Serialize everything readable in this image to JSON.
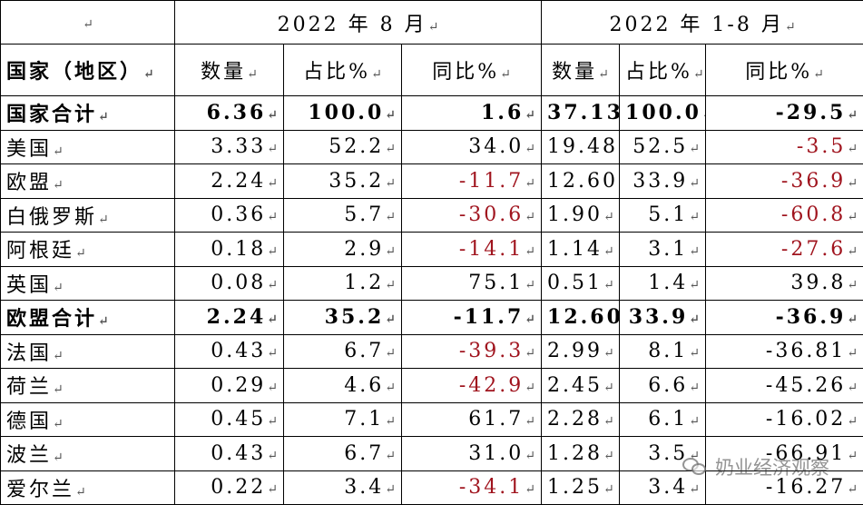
{
  "header": {
    "corner": "",
    "period1": "2022 年 8 月",
    "period2": "2022 年 1-8 月",
    "country_col": "国家（地区）",
    "qty": "数量",
    "share": "占比%",
    "yoy": "同比%"
  },
  "return_mark": "↵",
  "colors": {
    "negative": "#a0141e",
    "text": "#000000"
  },
  "rows": [
    {
      "name": "国家合计",
      "bold": true,
      "m_qty": "6.36",
      "m_share": "100.0",
      "m_yoy": "1.6",
      "m_yoy_red": false,
      "y_qty": "37.13",
      "y_share": "100.0",
      "y_yoy": "-29.5",
      "y_yoy_red": false
    },
    {
      "name": "美国",
      "bold": false,
      "m_qty": "3.33",
      "m_share": "52.2",
      "m_yoy": "34.0",
      "m_yoy_red": false,
      "y_qty": "19.48",
      "y_share": "52.5",
      "y_yoy": "-3.5",
      "y_yoy_red": true
    },
    {
      "name": "欧盟",
      "bold": false,
      "m_qty": "2.24",
      "m_share": "35.2",
      "m_yoy": "-11.7",
      "m_yoy_red": true,
      "y_qty": "12.60",
      "y_share": "33.9",
      "y_yoy": "-36.9",
      "y_yoy_red": true
    },
    {
      "name": "白俄罗斯",
      "bold": false,
      "m_qty": "0.36",
      "m_share": "5.7",
      "m_yoy": "-30.6",
      "m_yoy_red": true,
      "y_qty": "1.90",
      "y_share": "5.1",
      "y_yoy": "-60.8",
      "y_yoy_red": true
    },
    {
      "name": "阿根廷",
      "bold": false,
      "m_qty": "0.18",
      "m_share": "2.9",
      "m_yoy": "-14.1",
      "m_yoy_red": true,
      "y_qty": "1.14",
      "y_share": "3.1",
      "y_yoy": "-27.6",
      "y_yoy_red": true
    },
    {
      "name": "英国",
      "bold": false,
      "m_qty": "0.08",
      "m_share": "1.2",
      "m_yoy": "75.1",
      "m_yoy_red": false,
      "y_qty": "0.51",
      "y_share": "1.4",
      "y_yoy": "39.8",
      "y_yoy_red": false
    },
    {
      "name": "欧盟合计",
      "bold": true,
      "m_qty": "2.24",
      "m_share": "35.2",
      "m_yoy": "-11.7",
      "m_yoy_red": false,
      "y_qty": "12.60",
      "y_share": "33.9",
      "y_yoy": "-36.9",
      "y_yoy_red": false
    },
    {
      "name": "法国",
      "bold": false,
      "m_qty": "0.43",
      "m_share": "6.7",
      "m_yoy": "-39.3",
      "m_yoy_red": true,
      "y_qty": "2.99",
      "y_share": "8.1",
      "y_yoy": "-36.81",
      "y_yoy_red": false
    },
    {
      "name": "荷兰",
      "bold": false,
      "m_qty": "0.29",
      "m_share": "4.6",
      "m_yoy": "-42.9",
      "m_yoy_red": true,
      "y_qty": "2.45",
      "y_share": "6.6",
      "y_yoy": "-45.26",
      "y_yoy_red": false
    },
    {
      "name": "德国",
      "bold": false,
      "m_qty": "0.45",
      "m_share": "7.1",
      "m_yoy": "61.7",
      "m_yoy_red": false,
      "y_qty": "2.28",
      "y_share": "6.1",
      "y_yoy": "-16.02",
      "y_yoy_red": false
    },
    {
      "name": "波兰",
      "bold": false,
      "m_qty": "0.43",
      "m_share": "6.7",
      "m_yoy": "31.0",
      "m_yoy_red": false,
      "y_qty": "1.28",
      "y_share": "3.5",
      "y_yoy": "-66.91",
      "y_yoy_red": false
    },
    {
      "name": "爱尔兰",
      "bold": false,
      "m_qty": "0.22",
      "m_share": "3.4",
      "m_yoy": "-34.1",
      "m_yoy_red": true,
      "y_qty": "1.25",
      "y_share": "3.4",
      "y_yoy": "-16.27",
      "y_yoy_red": false
    }
  ],
  "watermark": {
    "icon": "wechat-icon",
    "text": "奶业经济观察"
  }
}
